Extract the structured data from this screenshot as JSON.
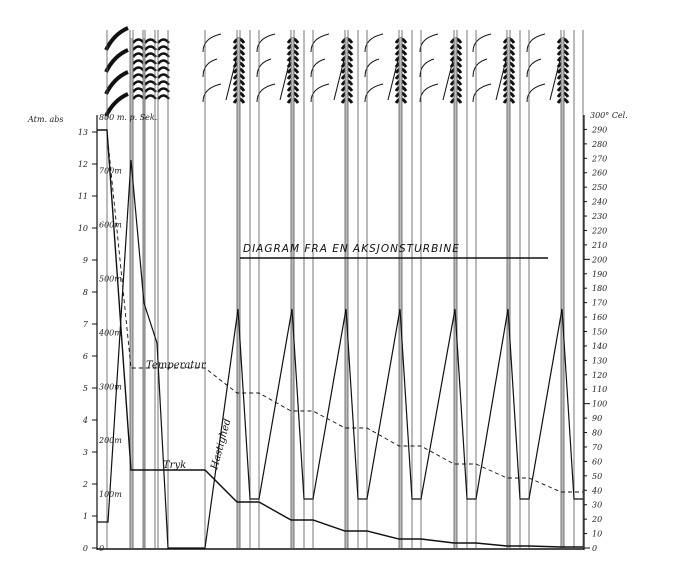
{
  "title": "DIAGRAM FRA EN AKSJONSTURBINE",
  "left_axis": {
    "unit_label": "Atm. abs",
    "ticks": [
      "0",
      "1",
      "2",
      "3",
      "4",
      "5",
      "6",
      "7",
      "8",
      "9",
      "10",
      "11",
      "12",
      "13"
    ]
  },
  "velocity_axis": {
    "top_label": "800 m. p. Sek.",
    "ticks": [
      "0",
      "100m",
      "200m",
      "300m",
      "400m",
      "500m",
      "600m",
      "700m"
    ]
  },
  "right_axis": {
    "top_label": "300° Cel.",
    "ticks": [
      "0",
      "10",
      "20",
      "30",
      "40",
      "50",
      "60",
      "70",
      "80",
      "90",
      "100",
      "110",
      "120",
      "130",
      "140",
      "150",
      "160",
      "170",
      "180",
      "190",
      "200",
      "210",
      "220",
      "230",
      "240",
      "250",
      "260",
      "270",
      "280",
      "290"
    ]
  },
  "curve_labels": {
    "temperature": "Temperatur",
    "pressure": "Tryk",
    "velocity": "Hastighed"
  },
  "colors": {
    "ink": "#111111",
    "paper": "#ffffff",
    "band": "#bdbdbd"
  }
}
